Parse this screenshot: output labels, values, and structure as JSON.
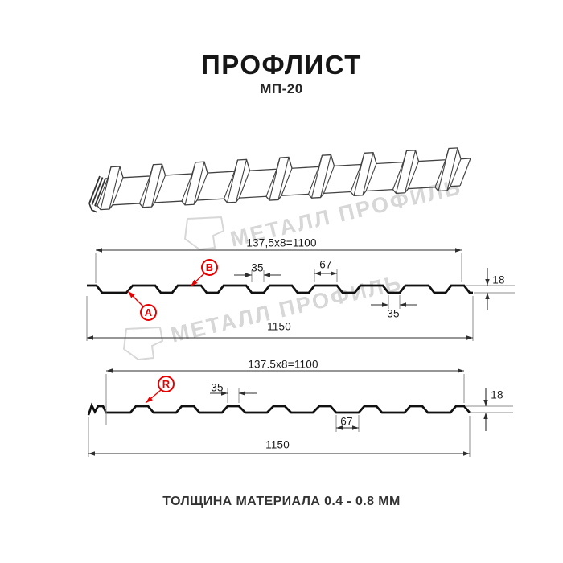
{
  "header": {
    "title": "ПРОФЛИСТ",
    "subtitle": "МП-20"
  },
  "watermark": {
    "brand": "МЕТАЛЛ ПРОФИЛЬ"
  },
  "profile_ab": {
    "useful_width": "137,5x8=1100",
    "crest_width": "35",
    "pan_width": "67",
    "height": "18",
    "valley_width": "35",
    "total_width": "1150",
    "label_a": "A",
    "label_b": "B"
  },
  "profile_r": {
    "useful_width": "137.5x8=1100",
    "crest_width": "35",
    "pan_width": "67",
    "height": "18",
    "total_width": "1150",
    "label_r": "R"
  },
  "footer": {
    "note": "ТОЛЩИНА МАТЕРИАЛА 0.4 - 0.8 ММ"
  },
  "colors": {
    "accent_red": "#e80000",
    "line": "#1a1a1a",
    "watermark": "#d7d7d7"
  }
}
